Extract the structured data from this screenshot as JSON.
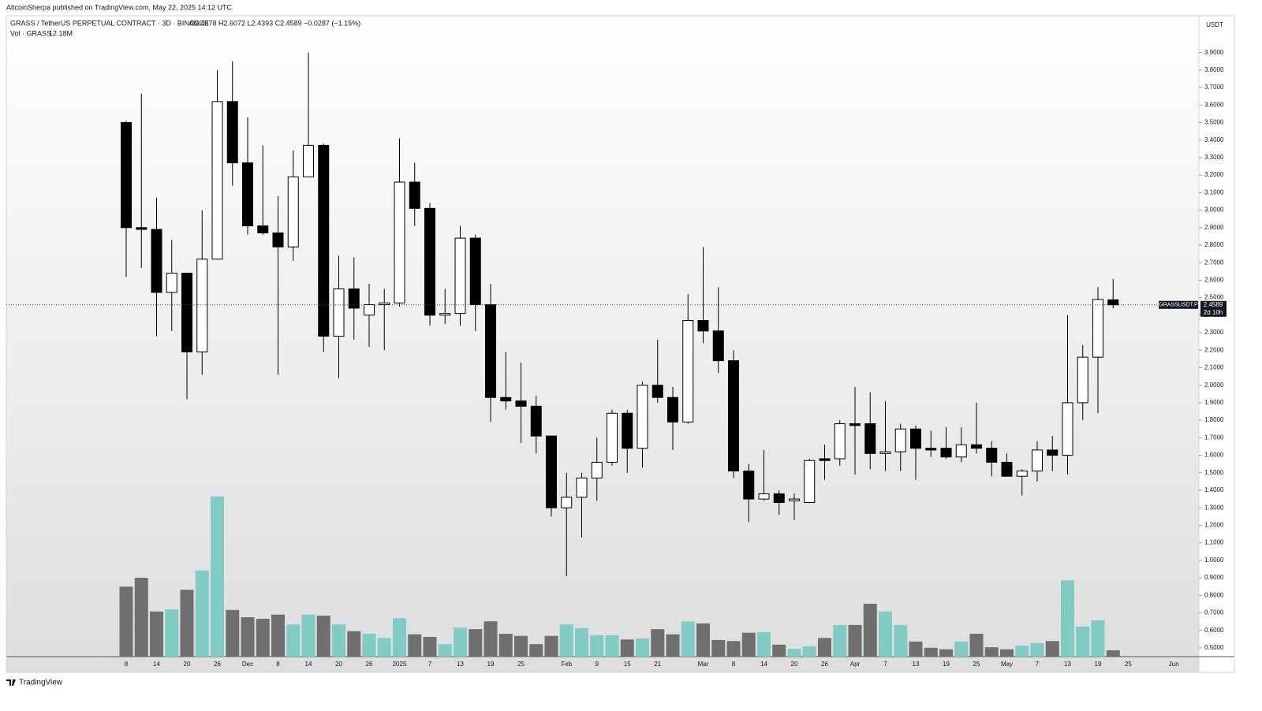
{
  "publisher": "AltcoinSherpa published on TradingView.com, May 22, 2025 14:12 UTC",
  "footer": "TradingView",
  "chart_data": {
    "type": "candlestick",
    "symbol": "GRASS / TetherUS PERPETUAL CONTRACT · 3D · BINANCE",
    "ohlc_label": "O2.4878  H2.6072  L2.4393  C2.4589  −0.0287 (−1.15%)",
    "volume_label": "Vol · GRASS",
    "volume_value_label": "12.18M",
    "currency": "USDT",
    "price_tag": {
      "symbol": "GRASSUSDT.P",
      "price": "2.4589",
      "countdown": "2d 10h"
    },
    "up_color": "#ffffff",
    "down_color": "#000000",
    "volume_up_color": "#80cbc4",
    "volume_down_color": "#6f6f6f",
    "categories": [
      "8",
      null,
      "14",
      null,
      "20",
      null,
      "26",
      null,
      "Dec",
      null,
      "8",
      null,
      "14",
      null,
      "20",
      null,
      "26",
      null,
      "2025",
      null,
      "7",
      null,
      "13",
      null,
      "19",
      null,
      "25",
      null,
      null,
      "Feb",
      null,
      "9",
      null,
      "15",
      null,
      "21",
      null,
      null,
      "Mar",
      null,
      "8",
      null,
      "14",
      null,
      "20",
      null,
      "26",
      null,
      "Apr",
      null,
      "7",
      null,
      "13",
      null,
      "19",
      null,
      "25",
      null,
      "May",
      null,
      "7",
      null,
      "13",
      null,
      "19",
      null
    ],
    "x_future_labels": [
      "25",
      "Jun"
    ],
    "open": [
      3.5,
      2.9,
      2.89,
      2.53,
      2.64,
      2.19,
      2.72,
      3.62,
      3.27,
      2.91,
      2.87,
      2.79,
      3.19,
      3.37,
      2.28,
      2.55,
      2.4,
      2.46,
      2.47,
      3.16,
      3.01,
      2.4,
      2.41,
      2.84,
      2.46,
      1.93,
      1.91,
      1.88,
      1.71,
      1.3,
      1.36,
      1.47,
      1.56,
      1.84,
      1.64,
      2.0,
      1.93,
      1.79,
      2.37,
      2.31,
      2.14,
      1.51,
      1.35,
      1.38,
      1.34,
      1.33,
      1.58,
      1.58,
      1.78,
      1.78,
      1.61,
      1.62,
      1.75,
      1.64,
      1.64,
      1.59,
      1.66,
      1.64,
      1.56,
      1.48,
      1.51,
      1.63,
      1.6,
      1.9,
      2.16,
      2.4878
    ],
    "high": [
      3.51,
      3.665,
      3.07,
      2.83,
      2.64,
      3.0,
      3.8,
      3.85,
      3.53,
      3.37,
      3.08,
      3.34,
      3.9,
      3.38,
      2.74,
      2.73,
      2.58,
      2.55,
      3.41,
      3.27,
      3.04,
      2.55,
      2.91,
      2.86,
      2.58,
      2.19,
      2.13,
      1.94,
      1.71,
      1.5,
      1.5,
      1.7,
      1.86,
      1.86,
      2.02,
      2.26,
      1.99,
      2.52,
      2.79,
      2.56,
      2.2,
      1.55,
      1.63,
      1.4,
      1.38,
      1.58,
      1.66,
      1.8,
      1.99,
      1.96,
      1.91,
      1.78,
      1.77,
      1.74,
      1.76,
      1.76,
      1.9,
      1.68,
      1.61,
      1.52,
      1.68,
      1.71,
      2.4,
      2.23,
      2.56,
      2.6072
    ],
    "low": [
      2.62,
      2.67,
      2.28,
      2.31,
      1.92,
      2.06,
      2.72,
      3.14,
      2.86,
      2.86,
      2.06,
      2.71,
      3.19,
      2.19,
      2.04,
      2.26,
      2.22,
      2.2,
      2.45,
      2.91,
      2.34,
      2.35,
      2.34,
      2.31,
      1.79,
      1.86,
      1.67,
      1.61,
      1.25,
      0.91,
      1.13,
      1.34,
      1.54,
      1.5,
      1.53,
      1.9,
      1.63,
      1.78,
      2.24,
      2.07,
      1.47,
      1.22,
      1.34,
      1.26,
      1.23,
      1.33,
      1.46,
      1.54,
      1.49,
      1.52,
      1.51,
      1.51,
      1.46,
      1.59,
      1.58,
      1.56,
      1.61,
      1.48,
      1.48,
      1.37,
      1.45,
      1.51,
      1.49,
      1.8,
      1.84,
      2.4393
    ],
    "close": [
      2.9,
      2.89,
      2.53,
      2.64,
      2.19,
      2.72,
      3.62,
      3.27,
      2.91,
      2.87,
      2.79,
      3.19,
      3.37,
      2.28,
      2.55,
      2.44,
      2.46,
      2.47,
      3.16,
      3.01,
      2.4,
      2.41,
      2.84,
      2.46,
      1.93,
      1.91,
      1.88,
      1.71,
      1.3,
      1.36,
      1.47,
      1.56,
      1.84,
      1.64,
      2.0,
      1.93,
      1.79,
      2.37,
      2.31,
      2.14,
      1.51,
      1.35,
      1.38,
      1.33,
      1.35,
      1.57,
      1.57,
      1.78,
      1.77,
      1.61,
      1.62,
      1.75,
      1.64,
      1.63,
      1.59,
      1.66,
      1.64,
      1.56,
      1.48,
      1.51,
      1.63,
      1.6,
      1.9,
      2.16,
      2.49,
      2.4589
    ],
    "volume": [
      135,
      152,
      87,
      91,
      129,
      166,
      309,
      90,
      76,
      73,
      81,
      62,
      81,
      79,
      62,
      49,
      44,
      36,
      74,
      43,
      38,
      24,
      56,
      53,
      68,
      44,
      40,
      24,
      40,
      62,
      55,
      41,
      41,
      33,
      35,
      53,
      43,
      68,
      64,
      32,
      30,
      46,
      47,
      23,
      15,
      20,
      36,
      61,
      61,
      102,
      87,
      61,
      29,
      17,
      14,
      29,
      44,
      18,
      14,
      21,
      26,
      30,
      147,
      58,
      70,
      12.18
    ],
    "ylim": [
      0.45,
      4.11
    ],
    "yticks": [
      {
        "value": 0.5,
        "label": "0.5000"
      },
      {
        "value": 0.6,
        "label": "0.6000"
      },
      {
        "value": 0.7,
        "label": "0.7000"
      },
      {
        "value": 0.8,
        "label": "0.8000"
      },
      {
        "value": 0.9,
        "label": "0.9000"
      },
      {
        "value": 1.0,
        "label": "1.0000"
      },
      {
        "value": 1.1,
        "label": "1.1000"
      },
      {
        "value": 1.2,
        "label": "1.2000"
      },
      {
        "value": 1.3,
        "label": "1.3000"
      },
      {
        "value": 1.4,
        "label": "1.4000"
      },
      {
        "value": 1.5,
        "label": "1.5000"
      },
      {
        "value": 1.6,
        "label": "1.6000"
      },
      {
        "value": 1.7,
        "label": "1.7000"
      },
      {
        "value": 1.8,
        "label": "1.8000"
      },
      {
        "value": 1.9,
        "label": "1.9000"
      },
      {
        "value": 2.0,
        "label": "2.0000"
      },
      {
        "value": 2.1,
        "label": "2.1000"
      },
      {
        "value": 2.2,
        "label": "2.2000"
      },
      {
        "value": 2.3,
        "label": "2.3000"
      },
      {
        "value": 2.4,
        "label": "2.4000"
      },
      {
        "value": 2.5,
        "label": "2.5000"
      },
      {
        "value": 2.6,
        "label": "2.6000"
      },
      {
        "value": 2.7,
        "label": "2.7000"
      },
      {
        "value": 2.8,
        "label": "2.8000"
      },
      {
        "value": 2.9,
        "label": "2.9000"
      },
      {
        "value": 3.0,
        "label": "3.0000"
      },
      {
        "value": 3.1,
        "label": "3.1000"
      },
      {
        "value": 3.2,
        "label": "3.2000"
      },
      {
        "value": 3.3,
        "label": "3.3000"
      },
      {
        "value": 3.4,
        "label": "3.4000"
      },
      {
        "value": 3.5,
        "label": "3.5000"
      },
      {
        "value": 3.6,
        "label": "3.6000"
      },
      {
        "value": 3.7,
        "label": "3.7000"
      },
      {
        "value": 3.8,
        "label": "3.8000"
      },
      {
        "value": 3.9,
        "label": "3.9000"
      }
    ]
  }
}
